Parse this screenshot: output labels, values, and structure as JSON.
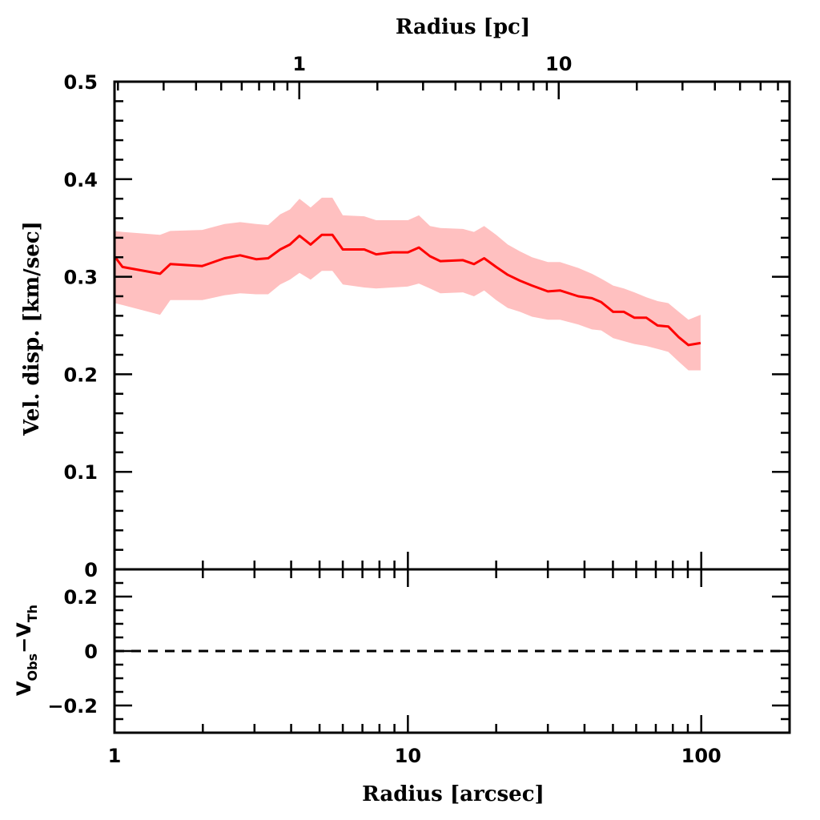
{
  "chart_data": {
    "type": "line",
    "top_axis": {
      "label": "Radius [pc]",
      "scale": "log",
      "tick_labels": [
        "1",
        "10"
      ],
      "major_ticks": [
        1,
        10
      ],
      "minor_ticks": [
        0.2,
        0.3,
        0.4,
        0.5,
        0.6,
        0.7,
        0.8,
        0.9,
        2,
        3,
        4,
        5,
        6,
        7,
        8,
        9,
        20,
        30,
        40,
        50,
        60,
        70
      ],
      "range": [
        0.194,
        77.6
      ]
    },
    "xlabel": "Radius [arcsec]",
    "xscale": "log",
    "xlim": [
      1,
      200
    ],
    "x_tick_labels": [
      "1",
      "10",
      "100"
    ],
    "x_major_ticks": [
      1,
      10,
      100
    ],
    "x_minor_ticks": [
      2,
      3,
      4,
      5,
      6,
      7,
      8,
      9,
      20,
      30,
      40,
      50,
      60,
      70,
      80,
      90
    ],
    "panels": [
      {
        "name": "velocity-dispersion",
        "ylabel": "Vel. disp. [km/sec]",
        "ylim": [
          0,
          0.5
        ],
        "y_tick_labels": [
          "0",
          "0.1",
          "0.2",
          "0.3",
          "0.4",
          "0.5"
        ],
        "y_major_ticks": [
          0,
          0.1,
          0.2,
          0.3,
          0.4,
          0.5
        ],
        "y_minor_step": 0.02,
        "series": [
          {
            "name": "velocity dispersion profile",
            "color": "#ff0000",
            "band_color": "#ffc0c0",
            "x": [
              1.0,
              1.065,
              1.43,
              1.55,
              1.99,
              2.37,
              2.68,
              3.04,
              3.34,
              3.67,
              3.96,
              4.27,
              4.66,
              5.09,
              5.53,
              6.0,
              7.1,
              7.8,
              8.85,
              10.0,
              10.9,
              11.9,
              12.9,
              15.4,
              16.8,
              18.2,
              20.0,
              21.9,
              24.1,
              26.5,
              30.0,
              33.0,
              38.1,
              42.4,
              45.6,
              50.1,
              54.5,
              59.2,
              65.0,
              71.0,
              77.2,
              83.8,
              90.4,
              99.5
            ],
            "y": [
              0.321,
              0.31,
              0.303,
              0.313,
              0.311,
              0.319,
              0.322,
              0.318,
              0.319,
              0.328,
              0.333,
              0.342,
              0.333,
              0.343,
              0.343,
              0.328,
              0.328,
              0.323,
              0.325,
              0.325,
              0.33,
              0.321,
              0.316,
              0.317,
              0.313,
              0.319,
              0.31,
              0.302,
              0.296,
              0.291,
              0.285,
              0.286,
              0.28,
              0.278,
              0.274,
              0.264,
              0.264,
              0.258,
              0.258,
              0.25,
              0.249,
              0.238,
              0.23,
              0.232
            ],
            "y_upper": [
              0.347,
              0.346,
              0.343,
              0.347,
              0.348,
              0.354,
              0.356,
              0.354,
              0.353,
              0.364,
              0.369,
              0.38,
              0.371,
              0.381,
              0.381,
              0.363,
              0.362,
              0.358,
              0.358,
              0.358,
              0.363,
              0.352,
              0.35,
              0.349,
              0.346,
              0.352,
              0.343,
              0.333,
              0.326,
              0.32,
              0.315,
              0.315,
              0.309,
              0.303,
              0.298,
              0.291,
              0.288,
              0.284,
              0.279,
              0.275,
              0.273,
              0.264,
              0.256,
              0.261
            ],
            "y_lower": [
              0.273,
              0.271,
              0.261,
              0.276,
              0.276,
              0.281,
              0.283,
              0.282,
              0.282,
              0.292,
              0.297,
              0.304,
              0.297,
              0.306,
              0.306,
              0.292,
              0.289,
              0.288,
              0.289,
              0.29,
              0.293,
              0.288,
              0.283,
              0.284,
              0.28,
              0.286,
              0.276,
              0.268,
              0.264,
              0.259,
              0.256,
              0.256,
              0.251,
              0.246,
              0.245,
              0.237,
              0.234,
              0.231,
              0.229,
              0.226,
              0.223,
              0.213,
              0.204,
              0.204
            ]
          }
        ]
      },
      {
        "name": "residuals",
        "ylabel_main": "V",
        "ylabel_sub1": "Obs",
        "ylabel_minus": "−",
        "ylabel_main2": "V",
        "ylabel_sub2": "Th",
        "ylim": [
          -0.3,
          0.3
        ],
        "y_tick_labels": [
          "0.2",
          "0",
          "−0.2"
        ],
        "y_major_ticks": [
          0.2,
          0,
          -0.2
        ],
        "y_minor_step": 0.05,
        "reference_line": {
          "y": 0,
          "style": "dashed",
          "color": "#000000"
        }
      }
    ]
  }
}
